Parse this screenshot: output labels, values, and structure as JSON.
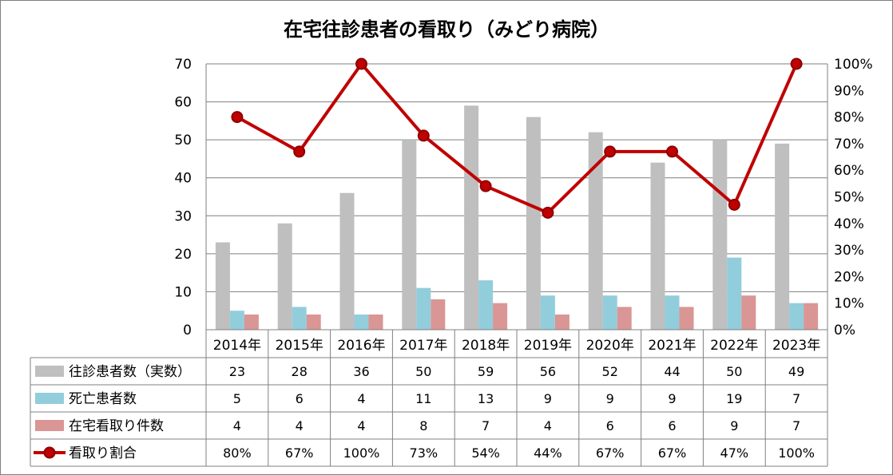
{
  "chart_data": {
    "type": "bar",
    "title": "在宅往診患者の看取り（みどり病院）",
    "categories": [
      "2014年",
      "2015年",
      "2016年",
      "2017年",
      "2018年",
      "2019年",
      "2020年",
      "2021年",
      "2022年",
      "2023年"
    ],
    "series": [
      {
        "name": "往診患者数（実数）",
        "kind": "bar",
        "axis": "left",
        "color": "#bfbfbf",
        "values": [
          23,
          28,
          36,
          50,
          59,
          56,
          52,
          44,
          50,
          49
        ],
        "labels": [
          "23",
          "28",
          "36",
          "50",
          "59",
          "56",
          "52",
          "44",
          "50",
          "49"
        ]
      },
      {
        "name": "死亡患者数",
        "kind": "bar",
        "axis": "left",
        "color": "#92cddc",
        "values": [
          5,
          6,
          4,
          11,
          13,
          9,
          9,
          9,
          19,
          7
        ],
        "labels": [
          "5",
          "6",
          "4",
          "11",
          "13",
          "9",
          "9",
          "9",
          "19",
          "7"
        ]
      },
      {
        "name": "在宅看取り件数",
        "kind": "bar",
        "axis": "left",
        "color": "#d99694",
        "values": [
          4,
          4,
          4,
          8,
          7,
          4,
          6,
          6,
          9,
          7
        ],
        "labels": [
          "4",
          "4",
          "4",
          "8",
          "7",
          "4",
          "6",
          "6",
          "9",
          "7"
        ]
      },
      {
        "name": "看取り割合",
        "kind": "line",
        "axis": "right",
        "color": "#c00000",
        "marker_color": "#8b0000",
        "values": [
          80,
          67,
          100,
          73,
          54,
          44,
          67,
          67,
          47,
          100
        ],
        "labels": [
          "80%",
          "67%",
          "100%",
          "73%",
          "54%",
          "44%",
          "67%",
          "67%",
          "47%",
          "100%"
        ]
      }
    ],
    "y_left": {
      "min": 0,
      "max": 70,
      "ticks": [
        "0",
        "10",
        "20",
        "30",
        "40",
        "50",
        "60",
        "70"
      ]
    },
    "y_right": {
      "min": 0,
      "max": 100,
      "ticks": [
        "0%",
        "10%",
        "20%",
        "30%",
        "40%",
        "50%",
        "60%",
        "70%",
        "80%",
        "90%",
        "100%"
      ]
    },
    "grid": true,
    "legend": "data-table"
  }
}
